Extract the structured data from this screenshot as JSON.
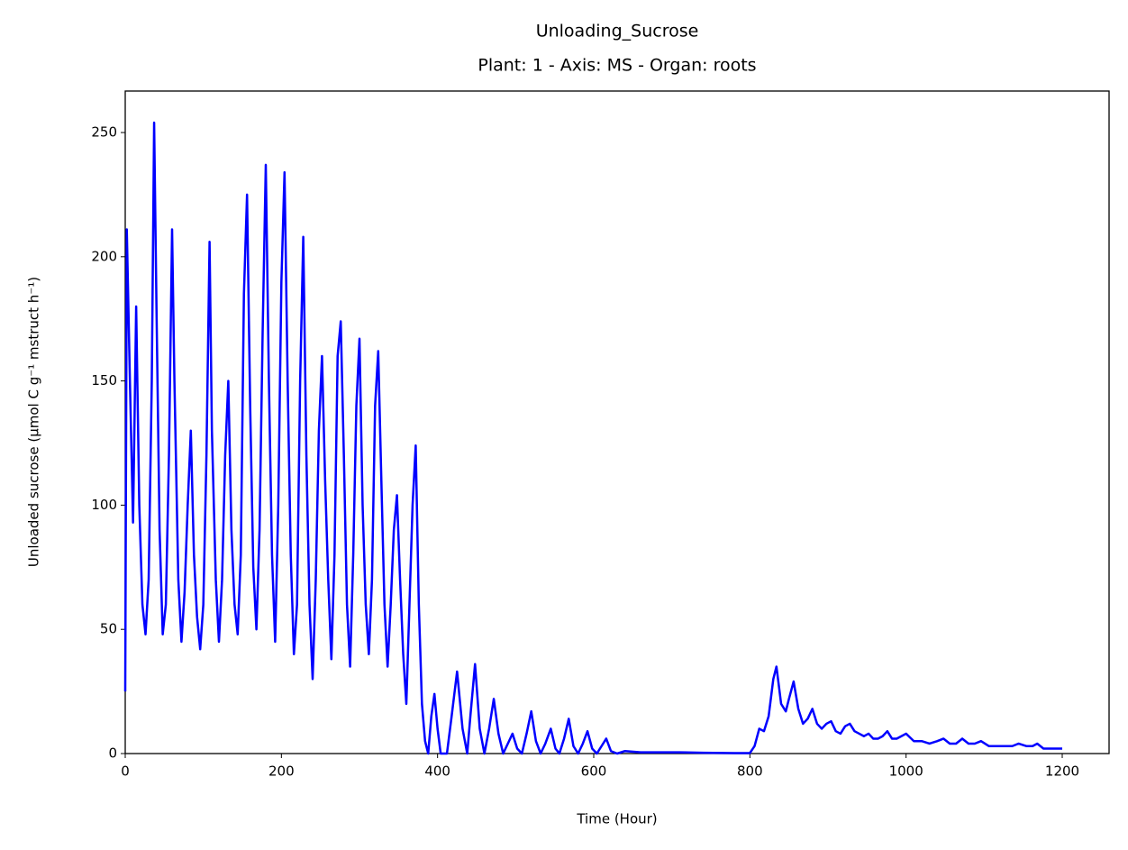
{
  "chart_data": {
    "type": "line",
    "title": "Unloading_Sucrose",
    "subtitle": "Plant: 1 - Axis: MS - Organ: roots",
    "x_label": "Time (Hour)",
    "y_label": "Unloaded sucrose (µmol C g⁻¹ mstruct h⁻¹)",
    "color": "#0000ff",
    "xlim": [
      0,
      1260
    ],
    "xticks": [
      0,
      200,
      400,
      600,
      800,
      1000,
      1200
    ],
    "ylim": [
      0,
      266.7
    ],
    "yticks": [
      0,
      50,
      100,
      150,
      200,
      250
    ],
    "grid": false,
    "x": [
      0,
      2,
      6,
      10,
      14,
      18,
      22,
      26,
      30,
      34,
      37,
      40,
      44,
      48,
      52,
      56,
      60,
      63,
      68,
      72,
      76,
      80,
      84,
      88,
      92,
      96,
      100,
      104,
      108,
      111,
      116,
      120,
      124,
      128,
      132,
      136,
      140,
      144,
      148,
      152,
      156,
      160,
      164,
      168,
      172,
      176,
      180,
      184,
      188,
      192,
      196,
      200,
      204,
      208,
      212,
      216,
      220,
      224,
      228,
      232,
      236,
      240,
      244,
      248,
      252,
      256,
      260,
      264,
      268,
      272,
      276,
      280,
      284,
      288,
      292,
      296,
      300,
      304,
      308,
      312,
      316,
      320,
      324,
      328,
      332,
      336,
      340,
      344,
      348,
      352,
      356,
      360,
      364,
      368,
      372,
      376,
      380,
      384,
      388,
      392,
      396,
      400,
      404,
      412,
      418,
      425,
      432,
      438,
      442,
      448,
      454,
      460,
      466,
      472,
      478,
      484,
      490,
      496,
      502,
      508,
      514,
      520,
      526,
      532,
      538,
      545,
      551,
      556,
      562,
      568,
      574,
      580,
      586,
      592,
      598,
      604,
      610,
      616,
      622,
      630,
      640,
      660,
      690,
      710,
      740,
      780,
      800,
      806,
      812,
      818,
      824,
      830,
      834,
      840,
      846,
      850,
      856,
      862,
      868,
      874,
      880,
      886,
      892,
      898,
      904,
      910,
      916,
      922,
      928,
      934,
      940,
      946,
      952,
      958,
      964,
      970,
      976,
      982,
      988,
      994,
      1000,
      1010,
      1020,
      1030,
      1040,
      1048,
      1056,
      1064,
      1072,
      1080,
      1088,
      1096,
      1106,
      1116,
      1126,
      1136,
      1144,
      1154,
      1162,
      1168,
      1176,
      1186,
      1200
    ],
    "values": [
      25,
      211,
      150,
      93,
      180,
      100,
      60,
      48,
      70,
      150,
      254,
      180,
      90,
      48,
      60,
      120,
      211,
      150,
      70,
      45,
      65,
      100,
      130,
      80,
      55,
      42,
      60,
      120,
      206,
      130,
      70,
      45,
      70,
      120,
      150,
      90,
      60,
      48,
      80,
      185,
      225,
      140,
      75,
      50,
      90,
      170,
      237,
      150,
      80,
      45,
      100,
      190,
      234,
      150,
      80,
      40,
      60,
      150,
      208,
      120,
      60,
      30,
      70,
      130,
      160,
      110,
      70,
      38,
      80,
      160,
      174,
      120,
      60,
      35,
      80,
      140,
      167,
      100,
      60,
      40,
      70,
      140,
      162,
      110,
      60,
      35,
      60,
      90,
      104,
      70,
      40,
      20,
      60,
      100,
      124,
      60,
      20,
      5,
      0,
      15,
      24,
      10,
      0,
      0,
      15,
      33,
      10,
      0,
      15,
      36,
      10,
      0,
      10,
      22,
      8,
      0,
      4,
      8,
      2,
      0,
      8,
      17,
      5,
      0,
      4,
      10,
      2,
      0,
      6,
      14,
      3,
      0,
      4,
      9,
      2,
      0,
      3,
      6,
      1,
      0,
      1,
      0.5,
      0.5,
      0.5,
      0.3,
      0.2,
      0.2,
      3,
      10,
      9,
      15,
      30,
      35,
      20,
      17,
      22,
      29,
      18,
      12,
      14,
      18,
      12,
      10,
      12,
      13,
      9,
      8,
      11,
      12,
      9,
      8,
      7,
      8,
      6,
      6,
      7,
      9,
      6,
      6,
      7,
      8,
      5,
      5,
      4,
      5,
      6,
      4,
      4,
      6,
      4,
      4,
      5,
      3,
      3,
      3,
      3,
      4,
      3,
      3,
      4,
      2,
      2,
      2
    ]
  }
}
